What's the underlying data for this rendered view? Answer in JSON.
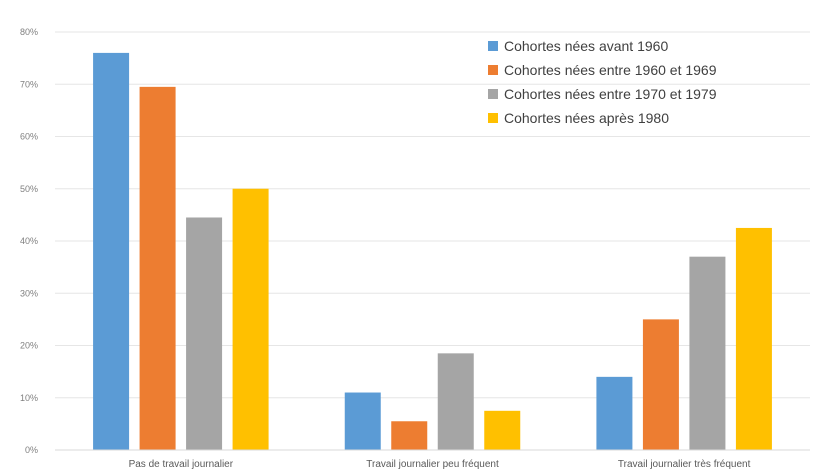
{
  "chart_data": {
    "type": "bar",
    "categories": [
      "Pas de travail journalier",
      "Travail journalier peu fréquent",
      "Travail journalier très fréquent"
    ],
    "series": [
      {
        "name": "Cohortes nées avant 1960",
        "color": "#5b9bd5",
        "values": [
          76,
          11,
          14
        ]
      },
      {
        "name": "Cohortes nées entre 1960 et 1969",
        "color": "#ed7d31",
        "values": [
          69.5,
          5.5,
          25
        ]
      },
      {
        "name": "Cohortes nées entre 1970 et 1979",
        "color": "#a5a5a5",
        "values": [
          44.5,
          18.5,
          37
        ]
      },
      {
        "name": "Cohortes nées après 1980",
        "color": "#ffc000",
        "values": [
          50,
          7.5,
          42.5
        ]
      }
    ],
    "yticks": [
      "0%",
      "10%",
      "20%",
      "30%",
      "40%",
      "50%",
      "60%",
      "70%",
      "80%"
    ],
    "ylim": [
      0,
      80
    ],
    "grid": true,
    "legend_position": "top-right",
    "title": "",
    "xlabel": "",
    "ylabel": ""
  }
}
